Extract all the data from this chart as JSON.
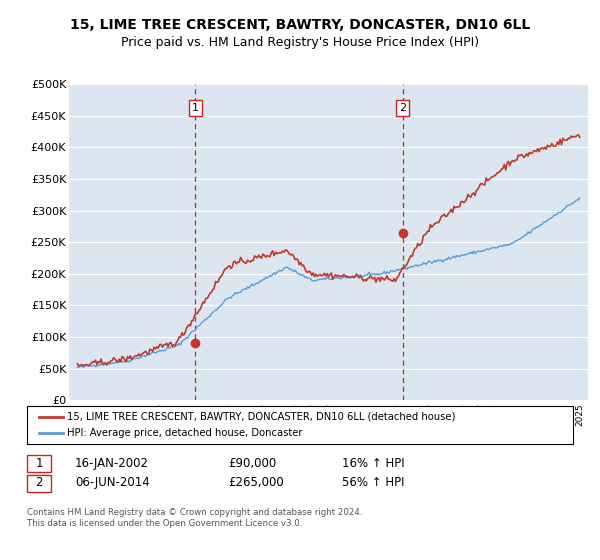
{
  "title": "15, LIME TREE CRESCENT, BAWTRY, DONCASTER, DN10 6LL",
  "subtitle": "Price paid vs. HM Land Registry's House Price Index (HPI)",
  "ylim": [
    0,
    500000
  ],
  "yticks": [
    0,
    50000,
    100000,
    150000,
    200000,
    250000,
    300000,
    350000,
    400000,
    450000,
    500000
  ],
  "ytick_labels": [
    "£0",
    "£50K",
    "£100K",
    "£150K",
    "£200K",
    "£250K",
    "£300K",
    "£350K",
    "£400K",
    "£450K",
    "£500K"
  ],
  "bg_color": "#dce6f1",
  "grid_color": "#ffffff",
  "line1_color": "#c0392b",
  "line2_color": "#5b9bd5",
  "vline_color": "#cc2222",
  "transaction1_year": 2002.04,
  "transaction2_year": 2014.43,
  "transaction1_price": 90000,
  "transaction2_price": 265000,
  "legend_line1": "15, LIME TREE CRESCENT, BAWTRY, DONCASTER, DN10 6LL (detached house)",
  "legend_line2": "HPI: Average price, detached house, Doncaster",
  "table_row1": [
    "1",
    "16-JAN-2002",
    "£90,000",
    "16% ↑ HPI"
  ],
  "table_row2": [
    "2",
    "06-JUN-2014",
    "£265,000",
    "56% ↑ HPI"
  ],
  "footer": "Contains HM Land Registry data © Crown copyright and database right 2024.\nThis data is licensed under the Open Government Licence v3.0.",
  "title_fontsize": 10,
  "subtitle_fontsize": 9,
  "tick_fontsize": 8
}
